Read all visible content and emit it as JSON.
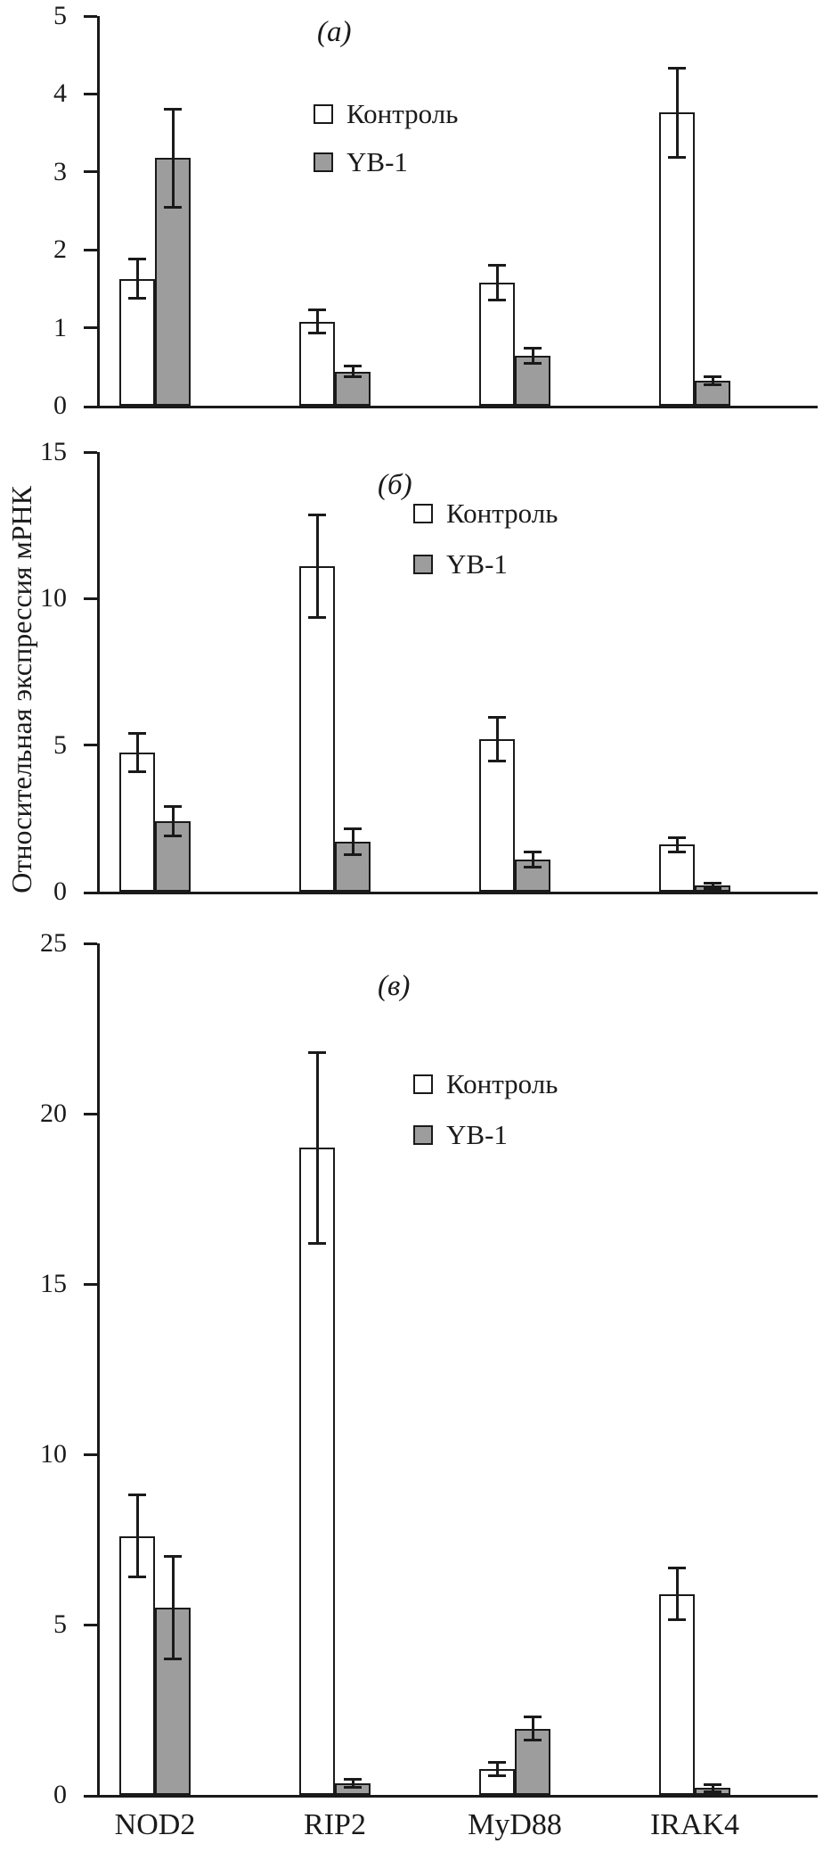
{
  "figure": {
    "ylabel": "Относительная экспрессия мРНК",
    "background": "#ffffff",
    "axis_color": "#1a1a1a",
    "bar_colors": {
      "control": "#ffffff",
      "yb1": "#9d9d9d"
    }
  },
  "chart_data": [
    {
      "type": "bar",
      "panel_label": "(a)",
      "categories": [
        "NOD2",
        "RIP2",
        "MyD88",
        "IRAK4"
      ],
      "series": [
        {
          "name": "Контроль",
          "color": "#ffffff",
          "values": [
            1.63,
            1.08,
            1.58,
            3.76
          ],
          "errors": [
            0.25,
            0.15,
            0.22,
            0.57
          ]
        },
        {
          "name": "YB-1",
          "color": "#9d9d9d",
          "values": [
            3.18,
            0.44,
            0.64,
            0.32
          ],
          "errors": [
            0.63,
            0.07,
            0.1,
            0.05
          ]
        }
      ],
      "xlabel": "",
      "ylabel": "Относительная экспрессия мРНК",
      "ylim": [
        0,
        5
      ],
      "yticks": [
        0,
        1,
        2,
        3,
        4,
        5
      ],
      "grid": false,
      "legend_position": "upper-center"
    },
    {
      "type": "bar",
      "panel_label": "(б)",
      "categories": [
        "NOD2",
        "RIP2",
        "MyD88",
        "IRAK4"
      ],
      "series": [
        {
          "name": "Контроль",
          "color": "#ffffff",
          "values": [
            4.75,
            11.1,
            5.2,
            1.6
          ],
          "errors": [
            0.65,
            1.75,
            0.75,
            0.25
          ]
        },
        {
          "name": "YB-1",
          "color": "#9d9d9d",
          "values": [
            2.4,
            1.7,
            1.1,
            0.2
          ],
          "errors": [
            0.5,
            0.45,
            0.25,
            0.08
          ]
        }
      ],
      "xlabel": "",
      "ylabel": "Относительная экспрессия мРНК",
      "ylim": [
        0,
        15
      ],
      "yticks": [
        0,
        5,
        10,
        15
      ],
      "grid": false,
      "legend_position": "upper-right"
    },
    {
      "type": "bar",
      "panel_label": "(в)",
      "categories": [
        "NOD2",
        "RIP2",
        "MyD88",
        "IRAK4"
      ],
      "series": [
        {
          "name": "Контроль",
          "color": "#ffffff",
          "values": [
            7.6,
            19.0,
            0.75,
            5.9
          ],
          "errors": [
            1.2,
            2.8,
            0.2,
            0.75
          ]
        },
        {
          "name": "YB-1",
          "color": "#9d9d9d",
          "values": [
            5.5,
            0.35,
            1.95,
            0.2
          ],
          "errors": [
            1.5,
            0.12,
            0.35,
            0.1
          ]
        }
      ],
      "xlabel": "",
      "ylabel": "Относительная экспрессия мРНК",
      "ylim": [
        0,
        25
      ],
      "yticks": [
        0,
        5,
        10,
        15,
        20,
        25
      ],
      "grid": false,
      "legend_position": "middle-right"
    }
  ]
}
